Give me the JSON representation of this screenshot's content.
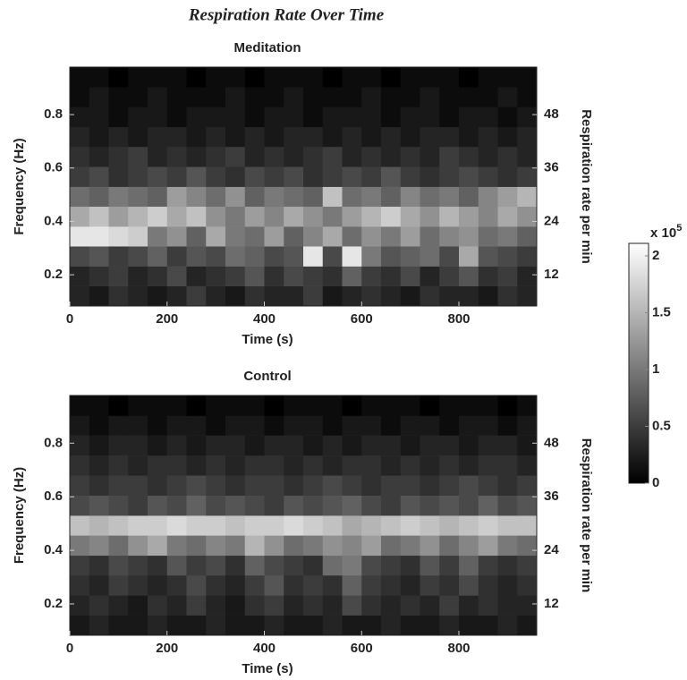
{
  "title": "Respiration Rate Over Time",
  "chart_data": [
    {
      "type": "heatmap",
      "title": "Meditation",
      "xlabel": "Time (s)",
      "ylabel": "Frequency (Hz)",
      "y2label": "Respiration rate per min",
      "colormap": "gray",
      "x_edges": [
        0,
        40,
        80,
        120,
        160,
        200,
        240,
        280,
        320,
        360,
        400,
        440,
        480,
        520,
        560,
        600,
        640,
        680,
        720,
        760,
        800,
        840,
        880,
        920,
        960
      ],
      "y_edges": [
        0.083,
        0.158,
        0.232,
        0.307,
        0.381,
        0.456,
        0.53,
        0.605,
        0.68,
        0.754,
        0.829,
        0.903,
        0.978
      ],
      "xlim": [
        0,
        960
      ],
      "xticks": [
        0,
        200,
        400,
        600,
        800
      ],
      "ylim": [
        0.083,
        0.978
      ],
      "yticks": [
        0.2,
        0.4,
        0.6,
        0.8
      ],
      "y2lim": [
        4.98,
        58.68
      ],
      "y2ticks": [
        12,
        24,
        36,
        48
      ],
      "z": [
        [
          0.3,
          0.2,
          0.4,
          0.3,
          0.2,
          0.3,
          0.5,
          0.3,
          0.2,
          0.4,
          0.3,
          0.3,
          0.5,
          0.2,
          0.3,
          0.4,
          0.3,
          0.2,
          0.4,
          0.3,
          0.3,
          0.2,
          0.4,
          0.3
        ],
        [
          0.3,
          0.4,
          0.5,
          0.3,
          0.4,
          0.6,
          0.3,
          0.4,
          0.5,
          0.7,
          0.4,
          0.6,
          0.5,
          0.4,
          0.8,
          0.5,
          0.4,
          0.6,
          0.3,
          0.5,
          0.7,
          0.4,
          0.5,
          0.3
        ],
        [
          0.6,
          0.7,
          0.5,
          0.6,
          0.8,
          0.5,
          0.7,
          0.6,
          0.9,
          0.8,
          0.6,
          0.7,
          1.9,
          0.6,
          1.9,
          1.0,
          0.7,
          0.8,
          0.9,
          0.6,
          1.4,
          0.7,
          0.6,
          0.5
        ],
        [
          1.9,
          1.9,
          1.8,
          1.7,
          1.0,
          1.2,
          0.8,
          1.4,
          1.0,
          0.9,
          1.3,
          0.8,
          1.1,
          1.4,
          0.9,
          1.2,
          1.0,
          1.3,
          0.9,
          1.1,
          1.2,
          0.9,
          1.0,
          0.8
        ],
        [
          1.4,
          1.6,
          1.3,
          1.5,
          1.7,
          1.4,
          1.6,
          1.2,
          1.0,
          1.3,
          1.1,
          1.4,
          1.2,
          1.0,
          1.3,
          1.5,
          1.7,
          1.4,
          1.2,
          1.5,
          1.3,
          1.1,
          1.4,
          1.2
        ],
        [
          0.9,
          0.8,
          1.0,
          0.9,
          0.8,
          1.3,
          1.1,
          0.9,
          1.2,
          0.8,
          1.0,
          0.9,
          0.8,
          1.6,
          0.9,
          1.0,
          0.8,
          1.1,
          0.9,
          1.0,
          0.8,
          1.1,
          1.3,
          1.5
        ],
        [
          0.5,
          0.6,
          0.4,
          0.5,
          0.6,
          0.5,
          0.7,
          0.5,
          0.4,
          0.6,
          0.5,
          0.6,
          0.4,
          0.5,
          0.6,
          0.5,
          0.7,
          0.5,
          0.4,
          0.5,
          0.6,
          0.5,
          0.4,
          0.5
        ],
        [
          0.4,
          0.3,
          0.4,
          0.5,
          0.3,
          0.4,
          0.3,
          0.4,
          0.5,
          0.3,
          0.4,
          0.3,
          0.4,
          0.5,
          0.3,
          0.4,
          0.3,
          0.4,
          0.3,
          0.5,
          0.4,
          0.3,
          0.4,
          0.3
        ],
        [
          0.3,
          0.2,
          0.3,
          0.2,
          0.3,
          0.3,
          0.2,
          0.3,
          0.2,
          0.3,
          0.2,
          0.3,
          0.3,
          0.2,
          0.3,
          0.2,
          0.3,
          0.2,
          0.3,
          0.3,
          0.2,
          0.3,
          0.2,
          0.3
        ],
        [
          0.2,
          0.2,
          0.1,
          0.2,
          0.2,
          0.1,
          0.2,
          0.2,
          0.2,
          0.1,
          0.2,
          0.2,
          0.1,
          0.2,
          0.2,
          0.2,
          0.1,
          0.2,
          0.2,
          0.1,
          0.2,
          0.2,
          0.1,
          0.2
        ],
        [
          0.1,
          0.2,
          0.1,
          0.1,
          0.2,
          0.1,
          0.1,
          0.1,
          0.2,
          0.1,
          0.1,
          0.2,
          0.1,
          0.1,
          0.1,
          0.2,
          0.1,
          0.1,
          0.2,
          0.1,
          0.1,
          0.1,
          0.2,
          0.1
        ],
        [
          0.1,
          0.1,
          0.0,
          0.1,
          0.1,
          0.1,
          0.0,
          0.1,
          0.1,
          0.0,
          0.1,
          0.1,
          0.1,
          0.0,
          0.1,
          0.1,
          0.0,
          0.1,
          0.1,
          0.1,
          0.0,
          0.1,
          0.1,
          0.1
        ]
      ]
    },
    {
      "type": "heatmap",
      "title": "Control",
      "xlabel": "Time (s)",
      "ylabel": "Frequency (Hz)",
      "y2label": "Respiration rate per min",
      "colormap": "gray",
      "x_edges": [
        0,
        40,
        80,
        120,
        160,
        200,
        240,
        280,
        320,
        360,
        400,
        440,
        480,
        520,
        560,
        600,
        640,
        680,
        720,
        760,
        800,
        840,
        880,
        920,
        960
      ],
      "y_edges": [
        0.083,
        0.158,
        0.232,
        0.307,
        0.381,
        0.456,
        0.53,
        0.605,
        0.68,
        0.754,
        0.829,
        0.903,
        0.978
      ],
      "xlim": [
        0,
        960
      ],
      "xticks": [
        0,
        200,
        400,
        600,
        800
      ],
      "ylim": [
        0.083,
        0.978
      ],
      "yticks": [
        0.2,
        0.4,
        0.6,
        0.8
      ],
      "y2lim": [
        4.98,
        58.68
      ],
      "y2ticks": [
        12,
        24,
        36,
        48
      ],
      "z": [
        [
          0.2,
          0.3,
          0.2,
          0.2,
          0.3,
          0.2,
          0.2,
          0.3,
          0.2,
          0.2,
          0.3,
          0.2,
          0.2,
          0.3,
          0.2,
          0.2,
          0.3,
          0.2,
          0.2,
          0.3,
          0.2,
          0.2,
          0.3,
          0.2
        ],
        [
          0.3,
          0.4,
          0.3,
          0.2,
          0.4,
          0.3,
          0.5,
          0.3,
          0.2,
          0.4,
          0.5,
          0.3,
          0.4,
          0.3,
          0.6,
          0.4,
          0.3,
          0.4,
          0.3,
          0.5,
          0.3,
          0.4,
          0.3,
          0.3
        ],
        [
          0.4,
          0.3,
          0.5,
          0.4,
          0.3,
          0.4,
          0.6,
          0.4,
          0.3,
          0.5,
          0.7,
          0.4,
          0.5,
          0.4,
          0.8,
          0.5,
          0.4,
          0.3,
          0.5,
          0.4,
          0.6,
          0.4,
          0.3,
          0.4
        ],
        [
          0.5,
          0.4,
          0.6,
          0.5,
          0.4,
          0.7,
          0.5,
          0.6,
          0.4,
          0.8,
          0.6,
          0.5,
          0.4,
          0.9,
          1.0,
          0.6,
          0.5,
          0.4,
          0.7,
          0.5,
          0.8,
          0.5,
          0.4,
          0.5
        ],
        [
          1.0,
          1.1,
          0.9,
          1.2,
          1.4,
          1.0,
          0.9,
          1.1,
          1.0,
          1.5,
          1.2,
          0.9,
          1.0,
          1.2,
          1.1,
          1.3,
          0.9,
          1.0,
          1.2,
          0.9,
          1.1,
          1.3,
          1.0,
          0.9
        ],
        [
          1.6,
          1.5,
          1.6,
          1.7,
          1.7,
          1.8,
          1.7,
          1.7,
          1.6,
          1.7,
          1.7,
          1.8,
          1.7,
          1.6,
          1.4,
          1.5,
          1.6,
          1.7,
          1.6,
          1.5,
          1.6,
          1.7,
          1.6,
          1.6
        ],
        [
          0.6,
          0.7,
          0.6,
          0.5,
          0.7,
          0.6,
          0.8,
          0.6,
          0.7,
          0.6,
          0.5,
          0.7,
          0.6,
          0.7,
          0.8,
          0.6,
          0.5,
          0.7,
          0.6,
          0.7,
          0.6,
          0.8,
          0.6,
          0.7
        ],
        [
          0.5,
          0.4,
          0.5,
          0.5,
          0.4,
          0.5,
          0.6,
          0.5,
          0.4,
          0.5,
          0.5,
          0.4,
          0.5,
          0.6,
          0.5,
          0.4,
          0.5,
          0.5,
          0.4,
          0.5,
          0.6,
          0.5,
          0.4,
          0.5
        ],
        [
          0.4,
          0.3,
          0.4,
          0.3,
          0.4,
          0.4,
          0.3,
          0.4,
          0.3,
          0.4,
          0.4,
          0.3,
          0.4,
          0.3,
          0.4,
          0.4,
          0.3,
          0.4,
          0.3,
          0.4,
          0.3,
          0.4,
          0.4,
          0.3
        ],
        [
          0.3,
          0.2,
          0.3,
          0.3,
          0.2,
          0.3,
          0.2,
          0.3,
          0.3,
          0.2,
          0.3,
          0.3,
          0.2,
          0.3,
          0.2,
          0.3,
          0.3,
          0.2,
          0.3,
          0.3,
          0.2,
          0.3,
          0.3,
          0.2
        ],
        [
          0.2,
          0.1,
          0.2,
          0.2,
          0.1,
          0.2,
          0.2,
          0.1,
          0.2,
          0.2,
          0.1,
          0.2,
          0.2,
          0.1,
          0.2,
          0.2,
          0.1,
          0.2,
          0.2,
          0.1,
          0.2,
          0.2,
          0.1,
          0.2
        ],
        [
          0.1,
          0.1,
          0.0,
          0.1,
          0.1,
          0.1,
          0.0,
          0.1,
          0.1,
          0.1,
          0.0,
          0.1,
          0.1,
          0.1,
          0.0,
          0.1,
          0.1,
          0.1,
          0.0,
          0.1,
          0.1,
          0.1,
          0.0,
          0.1
        ]
      ]
    }
  ],
  "colorbar": {
    "clim": [
      0,
      2.11
    ],
    "ticks": [
      0,
      0.5,
      1,
      1.5,
      2
    ],
    "multiplier": "x 10",
    "exponent": "5"
  }
}
